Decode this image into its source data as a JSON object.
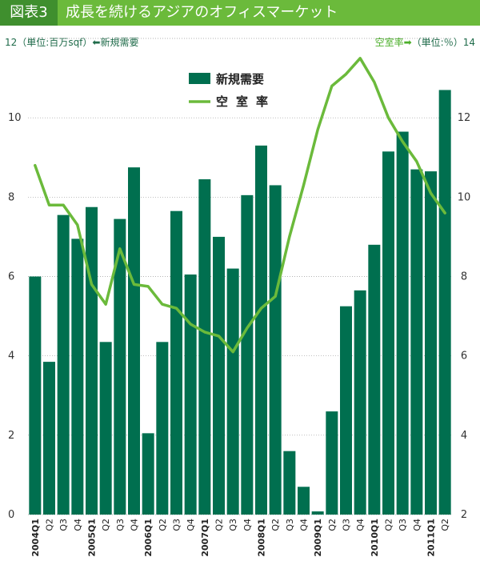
{
  "header": {
    "tag": "図表3",
    "title": "成長を続けるアジアのオフィスマーケット"
  },
  "axis_notes": {
    "left_prefix": "12（単位:百万sqf）",
    "left_arrow": "⬅",
    "left_series": "新規需要",
    "right_series": "空室率",
    "right_arrow": "➡",
    "right_suffix": "（単位:％）14"
  },
  "colors": {
    "bar": "#006f4f",
    "line": "#6bba3b",
    "header": "#6bba3b",
    "tag": "#3f8f2e"
  },
  "chart_data": {
    "type": "bar",
    "title": "成長を続けるアジアのオフィスマーケット",
    "categories": [
      "2004Q1",
      "Q2",
      "Q3",
      "Q4",
      "2005Q1",
      "Q2",
      "Q3",
      "Q4",
      "2006Q1",
      "Q2",
      "Q3",
      "Q4",
      "2007Q1",
      "Q2",
      "Q3",
      "Q4",
      "2008Q1",
      "Q2",
      "Q3",
      "Q4",
      "2009Q1",
      "Q2",
      "Q3",
      "Q4",
      "2010Q1",
      "Q2",
      "Q3",
      "Q4",
      "2011Q1",
      "Q2"
    ],
    "y_ticks_left": [
      "0",
      "2",
      "4",
      "6",
      "8",
      "10",
      "12"
    ],
    "y_ticks_right": [
      "2",
      "4",
      "6",
      "8",
      "10",
      "12",
      "14"
    ],
    "ylim_left": [
      0,
      12
    ],
    "ylim_right": [
      2,
      14
    ],
    "series": [
      {
        "name": "新規需要",
        "type": "bar",
        "axis": "left",
        "values": [
          6.0,
          3.85,
          7.55,
          6.95,
          7.75,
          4.35,
          7.45,
          8.75,
          2.05,
          4.35,
          7.65,
          6.05,
          8.45,
          7.0,
          6.2,
          8.05,
          9.3,
          8.3,
          1.6,
          0.7,
          0.08,
          2.6,
          5.25,
          5.65,
          6.8,
          9.15,
          9.65,
          8.7,
          8.65,
          10.7
        ]
      },
      {
        "name": "空室率",
        "type": "line",
        "axis": "right",
        "values": [
          10.8,
          9.8,
          9.8,
          9.3,
          7.8,
          7.3,
          8.7,
          7.8,
          7.75,
          7.3,
          7.2,
          6.8,
          6.6,
          6.5,
          6.1,
          6.7,
          7.2,
          7.5,
          9.0,
          10.3,
          11.7,
          12.8,
          13.1,
          13.5,
          12.9,
          12.0,
          11.4,
          10.9,
          10.1,
          9.6
        ]
      }
    ]
  }
}
